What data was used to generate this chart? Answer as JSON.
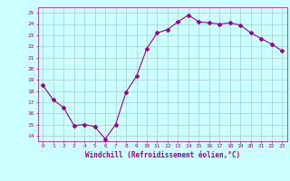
{
  "x": [
    0,
    1,
    2,
    3,
    4,
    5,
    6,
    7,
    8,
    9,
    10,
    11,
    12,
    13,
    14,
    15,
    16,
    17,
    18,
    19,
    20,
    21,
    22,
    23
  ],
  "y": [
    18.5,
    17.2,
    16.5,
    14.9,
    15.0,
    14.8,
    13.7,
    15.0,
    17.9,
    19.3,
    21.8,
    23.2,
    23.5,
    24.2,
    24.8,
    24.2,
    24.1,
    24.0,
    24.1,
    23.9,
    23.2,
    22.7,
    22.2,
    21.6
  ],
  "line_color": "#990099",
  "marker": "D",
  "marker_size": 2,
  "line_width": 0.8,
  "bg_color": "#ccffff",
  "grid_color": "#aacccc",
  "xlabel": "Windchill (Refroidissement éolien,°C)",
  "xlabel_color": "#990099",
  "tick_color": "#990099",
  "ylim": [
    13.5,
    25.5
  ],
  "yticks": [
    14,
    15,
    16,
    17,
    18,
    19,
    20,
    21,
    22,
    23,
    24,
    25
  ],
  "xticks": [
    0,
    1,
    2,
    3,
    4,
    5,
    6,
    7,
    8,
    9,
    10,
    11,
    12,
    13,
    14,
    15,
    16,
    17,
    18,
    19,
    20,
    21,
    22,
    23
  ],
  "xlim": [
    -0.5,
    23.5
  ]
}
